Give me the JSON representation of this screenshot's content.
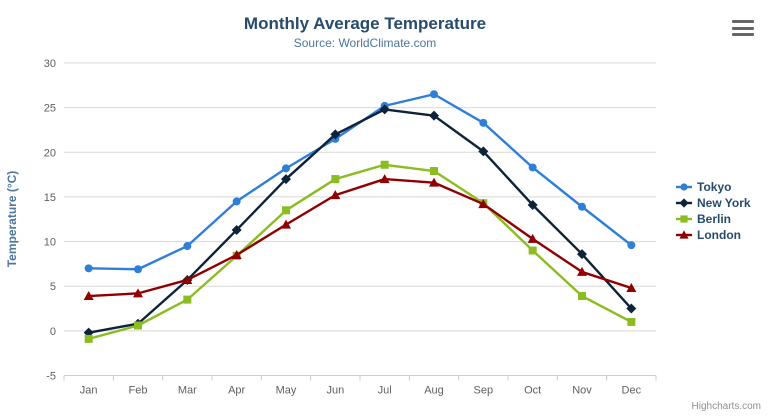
{
  "chart": {
    "title": "Monthly Average Temperature",
    "subtitle": "Source: WorldClimate.com",
    "y_axis_title": "Temperature (°C)",
    "credits_label": "Highcharts.com",
    "menu_icon": "hamburger-export-menu",
    "colors": {
      "title": "#274b6d",
      "subtitle": "#4d759e",
      "axis_labels": "#606060",
      "axis_title": "#4d759e",
      "gridline": "#d8d8d8",
      "axis_line": "#c0d0e0",
      "legend_text": "#274b6d",
      "credits": "#909090"
    }
  },
  "chart_data": {
    "type": "line",
    "title": "Monthly Average Temperature",
    "subtitle": "Source: WorldClimate.com",
    "xlabel": "",
    "ylabel": "Temperature (°C)",
    "ylim": [
      -5,
      30
    ],
    "yticks": [
      -5,
      0,
      5,
      10,
      15,
      20,
      25,
      30
    ],
    "grid": true,
    "legend_position": "right",
    "categories": [
      "Jan",
      "Feb",
      "Mar",
      "Apr",
      "May",
      "Jun",
      "Jul",
      "Aug",
      "Sep",
      "Oct",
      "Nov",
      "Dec"
    ],
    "series": [
      {
        "name": "Tokyo",
        "color": "#2f7ed8",
        "marker": "circle",
        "values": [
          7.0,
          6.9,
          9.5,
          14.5,
          18.2,
          21.5,
          25.2,
          26.5,
          23.3,
          18.3,
          13.9,
          9.6
        ]
      },
      {
        "name": "New York",
        "color": "#0d233a",
        "marker": "diamond",
        "values": [
          -0.2,
          0.8,
          5.7,
          11.3,
          17.0,
          22.0,
          24.8,
          24.1,
          20.1,
          14.1,
          8.6,
          2.5
        ]
      },
      {
        "name": "Berlin",
        "color": "#8bbc21",
        "marker": "square",
        "values": [
          -0.9,
          0.6,
          3.5,
          8.4,
          13.5,
          17.0,
          18.6,
          17.9,
          14.3,
          9.0,
          3.9,
          1.0
        ]
      },
      {
        "name": "London",
        "color": "#910000",
        "marker": "triangle",
        "values": [
          3.9,
          4.2,
          5.7,
          8.5,
          11.9,
          15.2,
          17.0,
          16.6,
          14.2,
          10.3,
          6.6,
          4.8
        ]
      }
    ]
  }
}
